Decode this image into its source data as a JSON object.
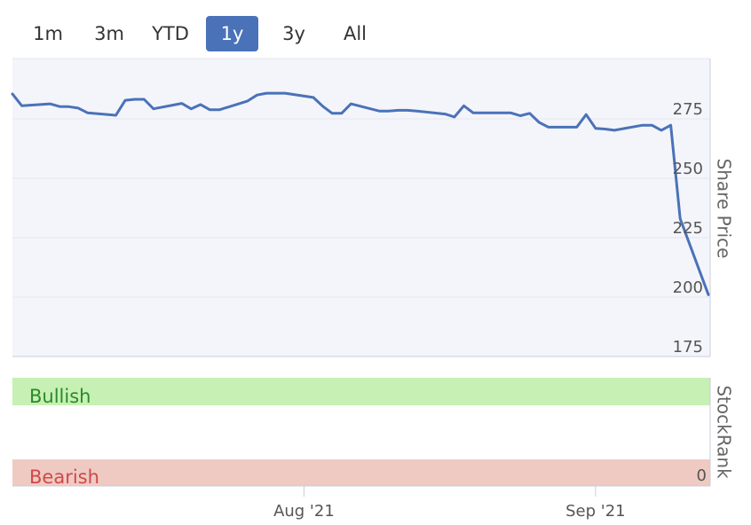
{
  "range_selector": {
    "buttons": [
      {
        "label": "1m",
        "active": false
      },
      {
        "label": "3m",
        "active": false
      },
      {
        "label": "YTD",
        "active": false
      },
      {
        "label": "1y",
        "active": true
      },
      {
        "label": "3y",
        "active": false
      },
      {
        "label": "All",
        "active": false
      }
    ]
  },
  "colors": {
    "line": "#4a72b8",
    "plot_bg": "#f4f5fa",
    "bullish_band": "#c6f0b4",
    "bearish_band": "#efcac3",
    "bullish_text": "#2a8a2a",
    "bearish_text": "#d04848",
    "active_button": "#4a72b8"
  },
  "chart_data": [
    {
      "type": "line",
      "title": "",
      "ylabel": "Share Price",
      "xlabel": "",
      "ylim": [
        175,
        300
      ],
      "y_ticks": [
        175,
        200,
        225,
        250,
        275
      ],
      "y_tick_labels": [
        "175",
        "200",
        "225",
        "250",
        "275"
      ],
      "x_ticks": [
        "Aug '21",
        "Sep '21"
      ],
      "x": [
        "2021-07-01",
        "2021-07-02",
        "2021-07-05",
        "2021-07-06",
        "2021-07-07",
        "2021-07-08",
        "2021-07-09",
        "2021-07-12",
        "2021-07-13",
        "2021-07-14",
        "2021-07-15",
        "2021-07-16",
        "2021-07-19",
        "2021-07-20",
        "2021-07-21",
        "2021-07-22",
        "2021-07-23",
        "2021-07-26",
        "2021-07-27",
        "2021-07-28",
        "2021-07-29",
        "2021-07-30",
        "2021-08-02",
        "2021-08-03",
        "2021-08-04",
        "2021-08-05",
        "2021-08-06",
        "2021-08-09",
        "2021-08-10",
        "2021-08-11",
        "2021-08-12",
        "2021-08-13",
        "2021-08-16",
        "2021-08-17",
        "2021-08-18",
        "2021-08-19",
        "2021-08-20",
        "2021-08-23",
        "2021-08-24",
        "2021-08-25",
        "2021-08-26",
        "2021-08-27",
        "2021-08-30",
        "2021-08-31",
        "2021-09-01",
        "2021-09-02",
        "2021-09-03",
        "2021-09-06",
        "2021-09-07",
        "2021-09-08",
        "2021-09-09",
        "2021-09-10",
        "2021-09-13"
      ],
      "series": [
        {
          "values": [
            285.5,
            280.5,
            281.3,
            280.2,
            280.1,
            279.5,
            277.5,
            276.5,
            282.8,
            283.2,
            283.2,
            279.2,
            281.5,
            279.2,
            281.0,
            278.8,
            278.8,
            282.5,
            285.0,
            285.8,
            285.8,
            285.8,
            284.0,
            280.3,
            277.3,
            277.3,
            281.3,
            278.3,
            278.3,
            278.6,
            278.6,
            278.3,
            277.0,
            275.8,
            280.5,
            277.5,
            277.5,
            277.5,
            276.3,
            277.3,
            273.5,
            271.5,
            271.5,
            276.8,
            271.0,
            270.7,
            270.2,
            272.3,
            272.3,
            270.2,
            272.3,
            233.0,
            201.0
          ]
        }
      ]
    },
    {
      "type": "bar",
      "title": "",
      "ylabel": "StockRank",
      "y_tick_labels": [
        "0"
      ],
      "bands": [
        {
          "label": "Bullish"
        },
        {
          "label": "Bearish"
        }
      ]
    }
  ]
}
